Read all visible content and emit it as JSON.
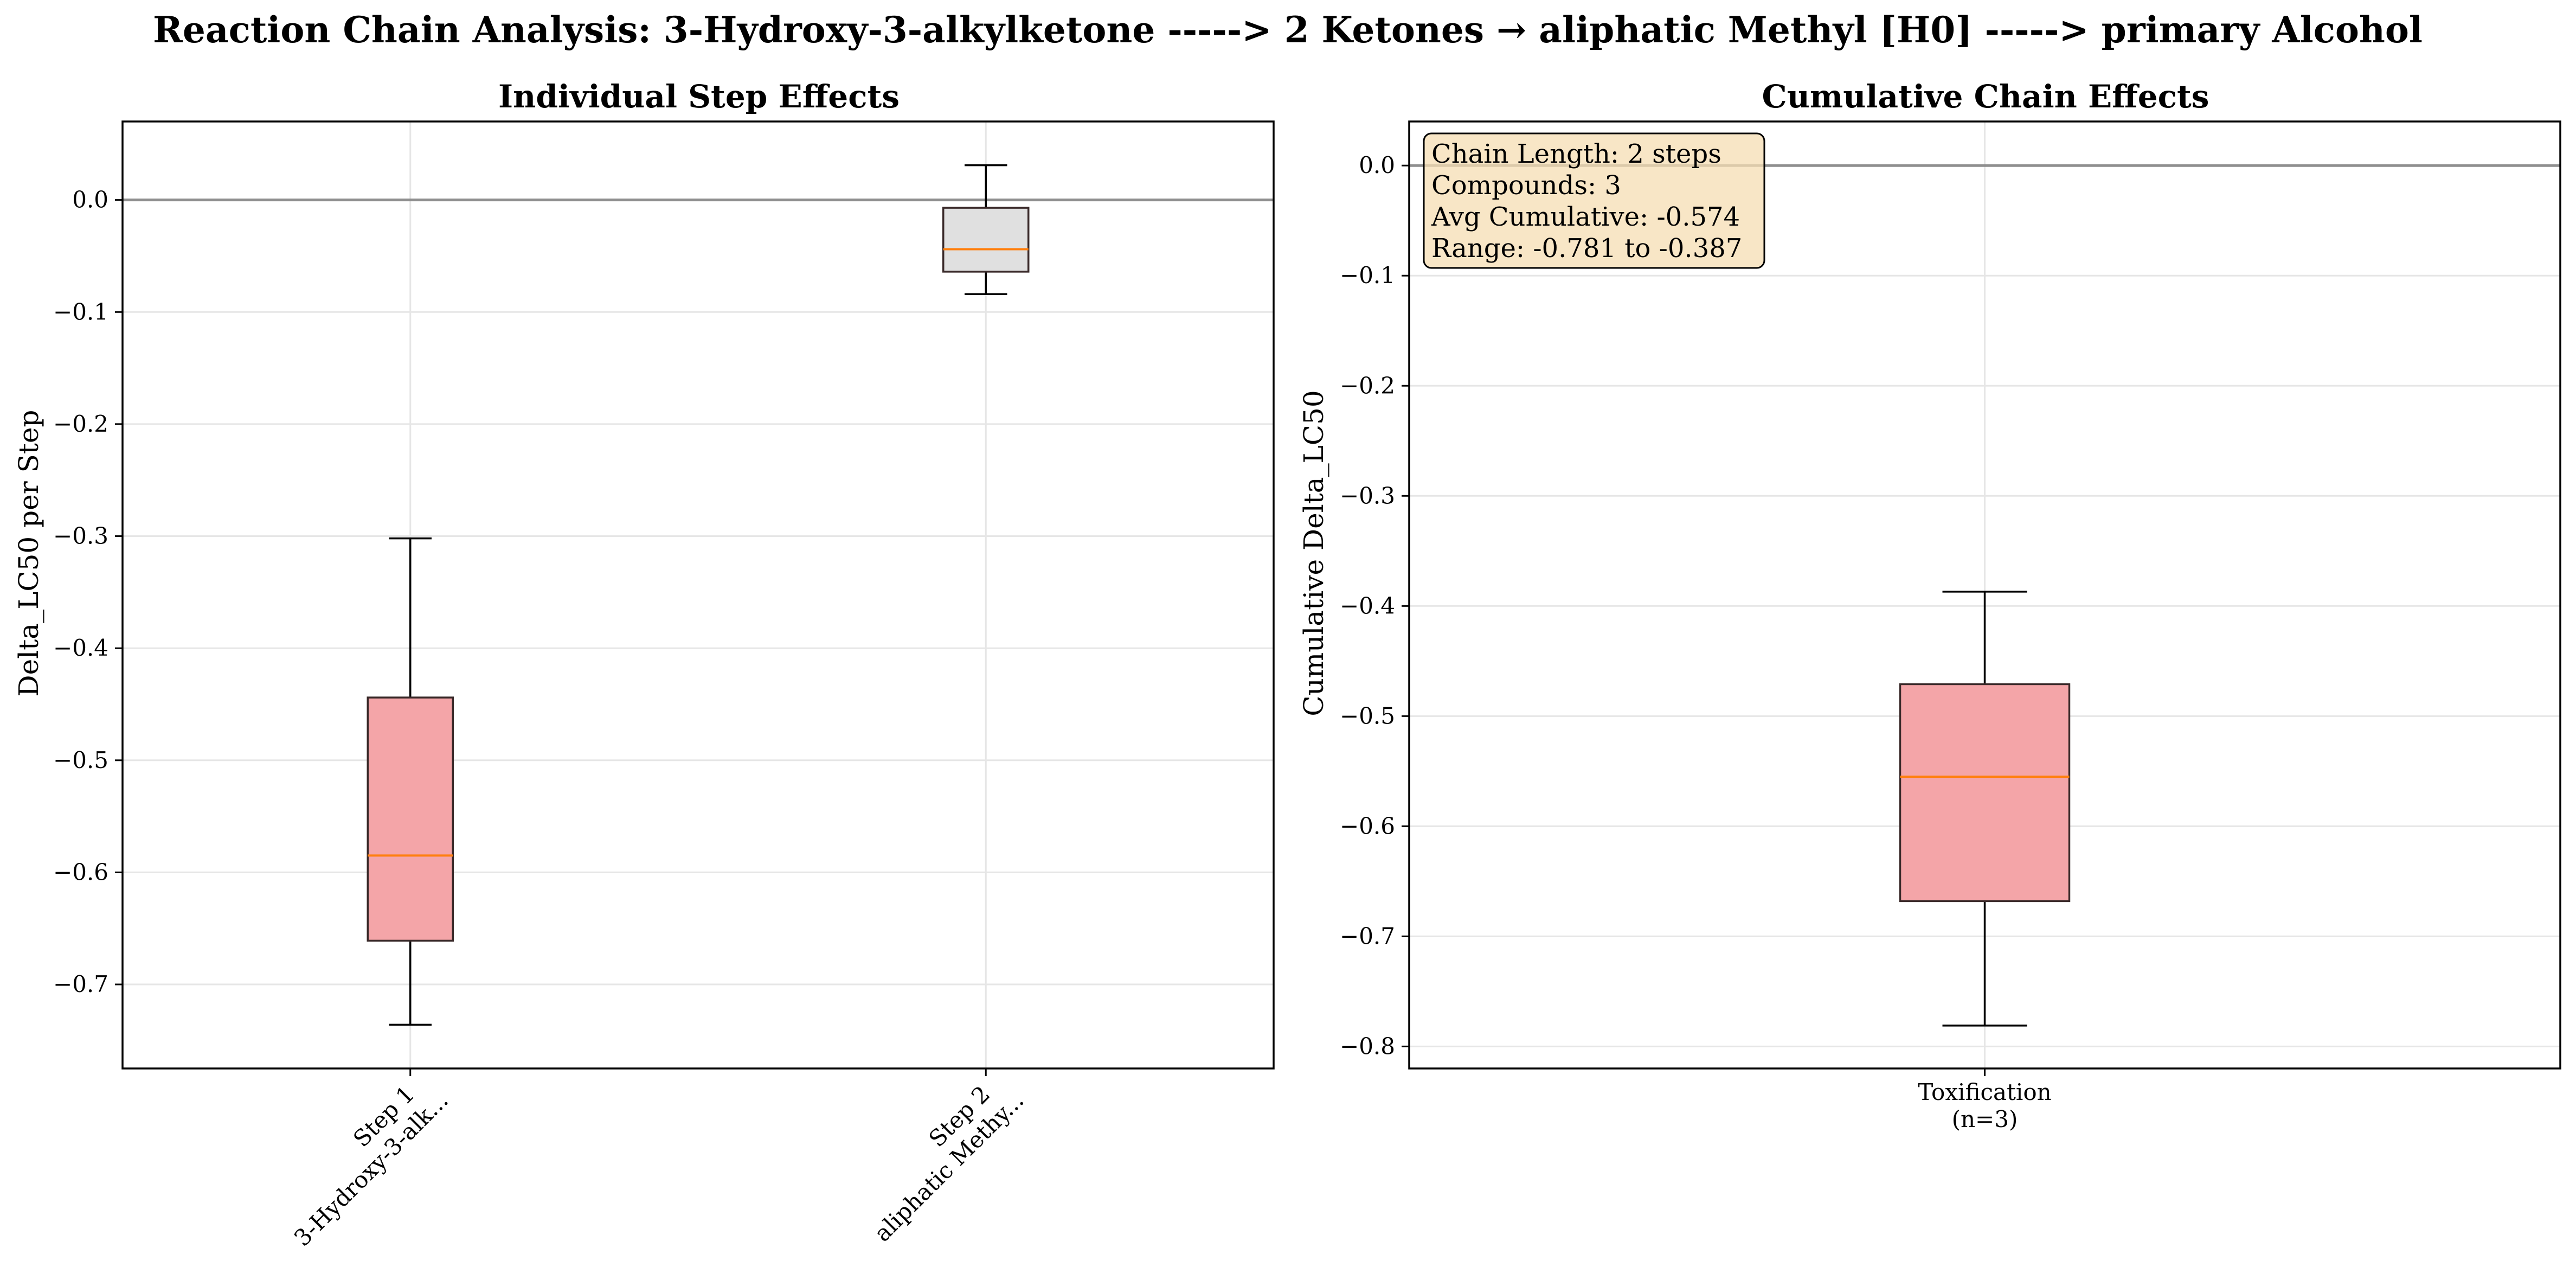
{
  "title": "Reaction Chain Analysis: 3-Hydroxy-3-alkylketone -----> 2 Ketones → aliphatic Methyl [H0] -----> primary Alcohol",
  "chart_data": [
    {
      "type": "box",
      "title": "Individual Step Effects",
      "xlabel": "",
      "ylabel": "Delta_LC50 per Step",
      "ylim": [
        -0.775,
        0.07
      ],
      "yticks": [
        0.0,
        -0.1,
        -0.2,
        -0.3,
        -0.4,
        -0.5,
        -0.6,
        -0.7
      ],
      "ytick_labels": [
        "0.0",
        "−0.1",
        "−0.2",
        "−0.3",
        "−0.4",
        "−0.5",
        "−0.6",
        "−0.7"
      ],
      "grid": true,
      "reference_line": 0.0,
      "boxes": [
        {
          "label_line1": "Step 1",
          "label_line2": "3-Hydroxy-3-alk...",
          "whisker_low": -0.736,
          "q1": -0.661,
          "median": -0.585,
          "q3": -0.444,
          "whisker_high": -0.302,
          "color": "#f4a5a8"
        },
        {
          "label_line1": "Step 2",
          "label_line2": "aliphatic Methy...",
          "whisker_low": -0.084,
          "q1": -0.064,
          "median": -0.044,
          "q3": -0.007,
          "whisker_high": 0.031,
          "color": "#e0e0e0"
        }
      ]
    },
    {
      "type": "box",
      "title": "Cumulative Chain Effects",
      "xlabel": "",
      "ylabel": "Cumulative Delta_LC50",
      "ylim": [
        -0.82,
        0.04
      ],
      "yticks": [
        0.0,
        -0.1,
        -0.2,
        -0.3,
        -0.4,
        -0.5,
        -0.6,
        -0.7,
        -0.8
      ],
      "ytick_labels": [
        "0.0",
        "−0.1",
        "−0.2",
        "−0.3",
        "−0.4",
        "−0.5",
        "−0.6",
        "−0.7",
        "−0.8"
      ],
      "grid": true,
      "reference_line": 0.0,
      "boxes": [
        {
          "label_line1": "Toxification",
          "label_line2": "(n=3)",
          "whisker_low": -0.781,
          "q1": -0.668,
          "median": -0.555,
          "q3": -0.471,
          "whisker_high": -0.387,
          "color": "#f4a5a8"
        }
      ],
      "info_box": {
        "lines": [
          "Chain Length: 2 steps",
          "Compounds: 3",
          "Avg Cumulative: -0.574",
          "Range: -0.781 to -0.387"
        ],
        "background": "#f5deb3"
      }
    }
  ]
}
